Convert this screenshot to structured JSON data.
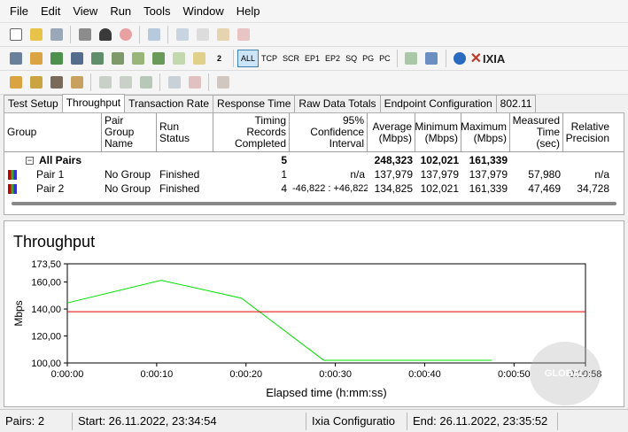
{
  "menu": [
    "File",
    "Edit",
    "View",
    "Run",
    "Tools",
    "Window",
    "Help"
  ],
  "toolbar2_text": [
    "ALL",
    "TCP",
    "SCR",
    "EP1",
    "EP2",
    "SQ",
    "PG",
    "PC"
  ],
  "toolbar2_badge": "2",
  "brand": "IXIA",
  "tabs": [
    "Test Setup",
    "Throughput",
    "Transaction Rate",
    "Response Time",
    "Raw Data Totals",
    "Endpoint Configuration",
    "802.11"
  ],
  "grid": {
    "headers": [
      "Group",
      "Pair Group Name",
      "Run Status",
      "Timing Records Completed",
      "95% Confidence Interval",
      "Average (Mbps)",
      "Minimum (Mbps)",
      "Maximum (Mbps)",
      "Measured Time (sec)",
      "Relative Precision"
    ],
    "all_pairs": {
      "label": "All Pairs",
      "records": "5",
      "average": "248,323",
      "minimum": "102,021",
      "maximum": "161,339"
    },
    "rows": [
      {
        "pair": "Pair 1",
        "group": "No Group",
        "status": "Finished",
        "records": "1",
        "ci": "n/a",
        "average": "137,979",
        "minimum": "137,979",
        "maximum": "137,979",
        "time": "57,980",
        "precision": "n/a"
      },
      {
        "pair": "Pair 2",
        "group": "No Group",
        "status": "Finished",
        "records": "4",
        "ci": "-46,822 : +46,822",
        "average": "134,825",
        "minimum": "102,021",
        "maximum": "161,339",
        "time": "47,469",
        "precision": "34,728"
      }
    ]
  },
  "chart_data": {
    "type": "line",
    "title": "Throughput",
    "xlabel": "Elapsed time (h:mm:ss)",
    "ylabel": "Mbps",
    "xlim": [
      0,
      58
    ],
    "ylim": [
      100,
      173.5
    ],
    "x_ticks": [
      "0:00:00",
      "0:00:10",
      "0:00:20",
      "0:00:30",
      "0:00:40",
      "0:00:50",
      "0:00:58"
    ],
    "x_tick_values": [
      0,
      10,
      20,
      30,
      40,
      50,
      58
    ],
    "y_ticks": [
      "100,00",
      "120,00",
      "140,00",
      "160,00",
      "173,50"
    ],
    "y_tick_values": [
      100,
      120,
      140,
      160,
      173.5
    ],
    "series": [
      {
        "color": "#00e000",
        "points": [
          [
            0,
            144.5
          ],
          [
            10.5,
            161.3
          ],
          [
            19.5,
            148
          ],
          [
            28.7,
            102
          ],
          [
            47.5,
            102
          ]
        ]
      },
      {
        "color": "#e00000",
        "points": [
          [
            0,
            138
          ],
          [
            58,
            138
          ]
        ]
      }
    ]
  },
  "status": {
    "pairs": "Pairs: 2",
    "start": "Start: 26.11.2022, 23:34:54",
    "config": "Ixia Configuratio",
    "end": "End: 26.11.2022, 23:35:52"
  },
  "watermark": "GLOBAL"
}
